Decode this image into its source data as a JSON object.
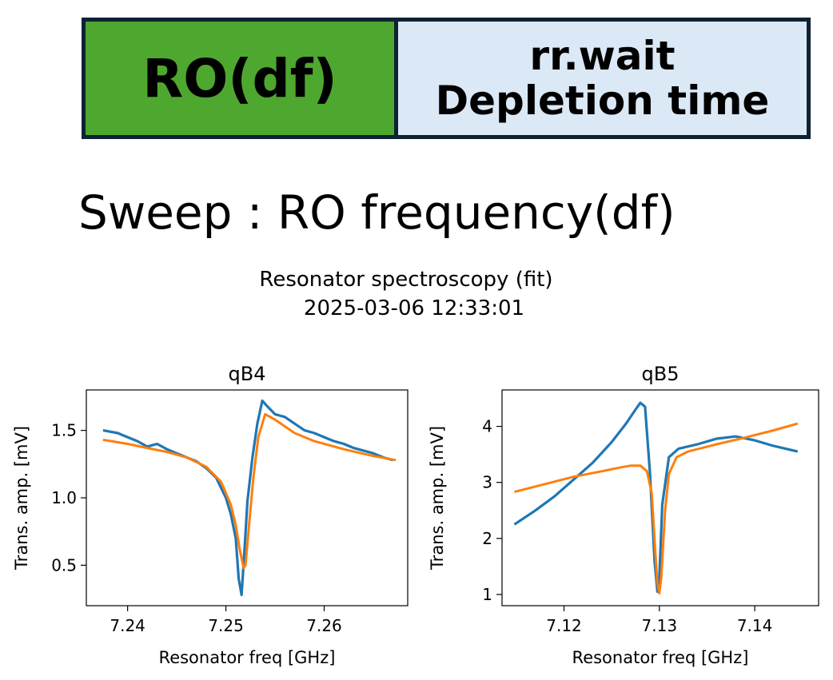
{
  "header": {
    "block_left": "RO(df)",
    "block_right_line1": "rr.wait",
    "block_right_line2": "Depletion time",
    "colors": {
      "left_fill": "#4ea72e",
      "right_fill": "#dbe8f6",
      "border": "#0d2233"
    }
  },
  "sweep_label": "Sweep : RO frequency(df)",
  "figure": {
    "suptitle_line1": "Resonator spectroscopy (fit)",
    "suptitle_line2": "2025-03-06 12:33:01"
  },
  "chart_data": [
    {
      "type": "line",
      "title": "qB4",
      "xlabel": "Resonator freq [GHz]",
      "ylabel": "Trans. amp. [mV]",
      "xlim": [
        7.2358,
        7.2685
      ],
      "ylim": [
        0.2,
        1.8
      ],
      "xticks": [
        7.24,
        7.25,
        7.26
      ],
      "xtick_labels": [
        "7.24",
        "7.25",
        "7.26"
      ],
      "yticks": [
        0.5,
        1.0,
        1.5
      ],
      "ytick_labels": [
        "0.5",
        "1.0",
        "1.5"
      ],
      "series": [
        {
          "kind": "data",
          "color": "#1f77b4",
          "x": [
            7.2375,
            7.239,
            7.24,
            7.241,
            7.242,
            7.243,
            7.244,
            7.245,
            7.246,
            7.247,
            7.248,
            7.249,
            7.25,
            7.2505,
            7.251,
            7.2513,
            7.2516,
            7.2519,
            7.2522,
            7.2527,
            7.2532,
            7.2537,
            7.2542,
            7.255,
            7.256,
            7.257,
            7.258,
            7.259,
            7.26,
            7.261,
            7.262,
            7.263,
            7.264,
            7.265,
            7.266,
            7.267
          ],
          "y": [
            1.5,
            1.48,
            1.45,
            1.42,
            1.38,
            1.4,
            1.36,
            1.33,
            1.3,
            1.27,
            1.22,
            1.15,
            1.0,
            0.88,
            0.7,
            0.4,
            0.28,
            0.62,
            0.98,
            1.3,
            1.55,
            1.72,
            1.68,
            1.62,
            1.6,
            1.55,
            1.5,
            1.48,
            1.45,
            1.42,
            1.4,
            1.37,
            1.35,
            1.33,
            1.3,
            1.28
          ]
        },
        {
          "kind": "fit",
          "color": "#ff7f0e",
          "x": [
            7.2375,
            7.24,
            7.242,
            7.244,
            7.246,
            7.248,
            7.2495,
            7.2505,
            7.251,
            7.2514,
            7.2518,
            7.252,
            7.2523,
            7.2528,
            7.2533,
            7.254,
            7.255,
            7.257,
            7.259,
            7.262,
            7.265,
            7.2673
          ],
          "y": [
            1.43,
            1.4,
            1.37,
            1.34,
            1.3,
            1.23,
            1.12,
            0.95,
            0.8,
            0.62,
            0.48,
            0.5,
            0.75,
            1.15,
            1.45,
            1.62,
            1.58,
            1.48,
            1.42,
            1.36,
            1.31,
            1.28
          ]
        }
      ]
    },
    {
      "type": "line",
      "title": "qB5",
      "xlabel": "Resonator freq [GHz]",
      "ylabel": "Trans. amp. [mV]",
      "xlim": [
        7.1135,
        7.1467
      ],
      "ylim": [
        0.8,
        4.65
      ],
      "xticks": [
        7.12,
        7.13,
        7.14
      ],
      "xtick_labels": [
        "7.12",
        "7.13",
        "7.14"
      ],
      "yticks": [
        1,
        2,
        3,
        4
      ],
      "ytick_labels": [
        "1",
        "2",
        "3",
        "4"
      ],
      "series": [
        {
          "kind": "data",
          "color": "#1f77b4",
          "x": [
            7.1148,
            7.117,
            7.119,
            7.121,
            7.123,
            7.125,
            7.1265,
            7.1275,
            7.128,
            7.1285,
            7.129,
            7.1295,
            7.1298,
            7.13,
            7.1303,
            7.131,
            7.132,
            7.134,
            7.136,
            7.138,
            7.14,
            7.142,
            7.1445
          ],
          "y": [
            2.25,
            2.5,
            2.75,
            3.05,
            3.35,
            3.72,
            4.05,
            4.3,
            4.42,
            4.35,
            3.2,
            1.6,
            1.05,
            1.3,
            2.6,
            3.45,
            3.6,
            3.68,
            3.78,
            3.82,
            3.75,
            3.65,
            3.55
          ]
        },
        {
          "kind": "fit",
          "color": "#ff7f0e",
          "x": [
            7.1148,
            7.118,
            7.121,
            7.124,
            7.126,
            7.127,
            7.128,
            7.1287,
            7.1292,
            7.1296,
            7.1298,
            7.13,
            7.1302,
            7.1306,
            7.131,
            7.1318,
            7.133,
            7.136,
            7.139,
            7.142,
            7.1445
          ],
          "y": [
            2.83,
            2.97,
            3.1,
            3.2,
            3.27,
            3.3,
            3.3,
            3.2,
            2.8,
            1.7,
            1.2,
            1.02,
            1.3,
            2.5,
            3.15,
            3.45,
            3.55,
            3.68,
            3.8,
            3.93,
            4.05
          ]
        }
      ]
    }
  ]
}
